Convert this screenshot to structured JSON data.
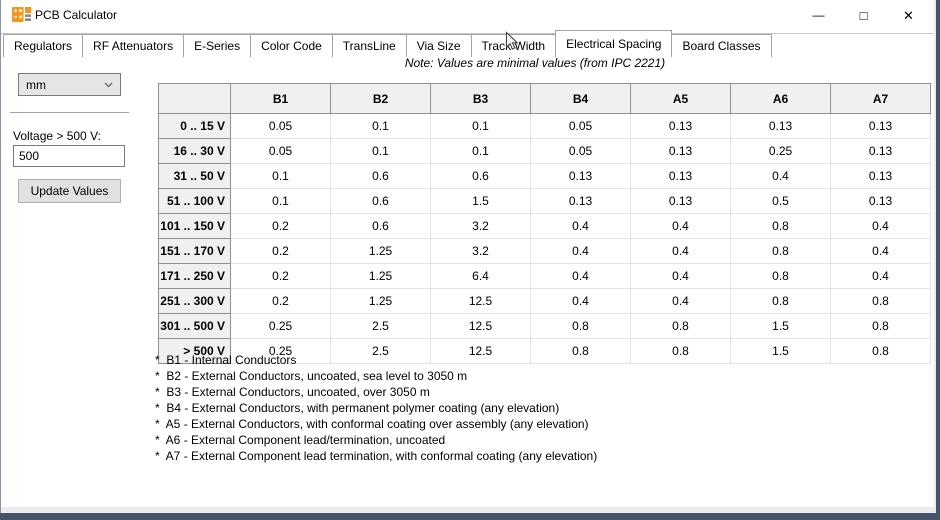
{
  "window": {
    "title": "PCB Calculator",
    "controls": {
      "minimize": "—",
      "maximize": "□",
      "close": "✕"
    }
  },
  "tabs": [
    {
      "label": "Regulators",
      "active": false
    },
    {
      "label": "RF Attenuators",
      "active": false
    },
    {
      "label": "E-Series",
      "active": false
    },
    {
      "label": "Color Code",
      "active": false
    },
    {
      "label": "TransLine",
      "active": false
    },
    {
      "label": "Via Size",
      "active": false
    },
    {
      "label": "Track Width",
      "active": false
    },
    {
      "label": "Electrical Spacing",
      "active": true
    },
    {
      "label": "Board Classes",
      "active": false
    }
  ],
  "panel": {
    "unit_value": "mm",
    "voltage_label": "Voltage > 500 V:",
    "voltage_value": "500",
    "update_button": "Update Values"
  },
  "note": "Note: Values are minimal values (from IPC 2221)",
  "table": {
    "columns": [
      "B1",
      "B2",
      "B3",
      "B4",
      "A5",
      "A6",
      "A7"
    ],
    "rows": [
      {
        "label": "0 .. 15 V",
        "values": [
          "0.05",
          "0.1",
          "0.1",
          "0.05",
          "0.13",
          "0.13",
          "0.13"
        ]
      },
      {
        "label": "16 .. 30 V",
        "values": [
          "0.05",
          "0.1",
          "0.1",
          "0.05",
          "0.13",
          "0.25",
          "0.13"
        ]
      },
      {
        "label": "31 .. 50 V",
        "values": [
          "0.1",
          "0.6",
          "0.6",
          "0.13",
          "0.13",
          "0.4",
          "0.13"
        ]
      },
      {
        "label": "51 .. 100 V",
        "values": [
          "0.1",
          "0.6",
          "1.5",
          "0.13",
          "0.13",
          "0.5",
          "0.13"
        ]
      },
      {
        "label": "101 .. 150 V",
        "values": [
          "0.2",
          "0.6",
          "3.2",
          "0.4",
          "0.4",
          "0.8",
          "0.4"
        ]
      },
      {
        "label": "151 .. 170 V",
        "values": [
          "0.2",
          "1.25",
          "3.2",
          "0.4",
          "0.4",
          "0.8",
          "0.4"
        ]
      },
      {
        "label": "171 .. 250 V",
        "values": [
          "0.2",
          "1.25",
          "6.4",
          "0.4",
          "0.4",
          "0.8",
          "0.4"
        ]
      },
      {
        "label": "251 .. 300 V",
        "values": [
          "0.2",
          "1.25",
          "12.5",
          "0.4",
          "0.4",
          "0.8",
          "0.8"
        ]
      },
      {
        "label": "301 .. 500 V",
        "values": [
          "0.25",
          "2.5",
          "12.5",
          "0.8",
          "0.8",
          "1.5",
          "0.8"
        ]
      },
      {
        "label": "> 500 V",
        "values": [
          "0.25",
          "2.5",
          "12.5",
          "0.8",
          "0.8",
          "1.5",
          "0.8"
        ]
      }
    ]
  },
  "footnotes": [
    "*  B1 - Internal Conductors",
    "*  B2 - External Conductors, uncoated, sea level to 3050 m",
    "*  B3 - External Conductors, uncoated, over 3050 m",
    "*  B4 - External Conductors, with permanent polymer coating (any elevation)",
    "*  A5 - External Conductors, with conformal coating over assembly (any elevation)",
    "*  A6 - External Component lead/termination, uncoated",
    "*  A7 - External Component lead termination, with conformal coating (any elevation)"
  ],
  "icons": {
    "app_icon": "pcb-calculator",
    "chevron": "chevron-down",
    "cursor": "arrow-pointer"
  },
  "colors": {
    "accent_orange": "#F7941D",
    "window_border": "#46536B",
    "header_bg": "#F0F0F0",
    "header_border": "#8F8F8F",
    "grid_line": "#E3E3E3",
    "control_bg": "#E5E5E5",
    "control_border": "#7A7A7A",
    "button_border": "#ADADAD"
  }
}
